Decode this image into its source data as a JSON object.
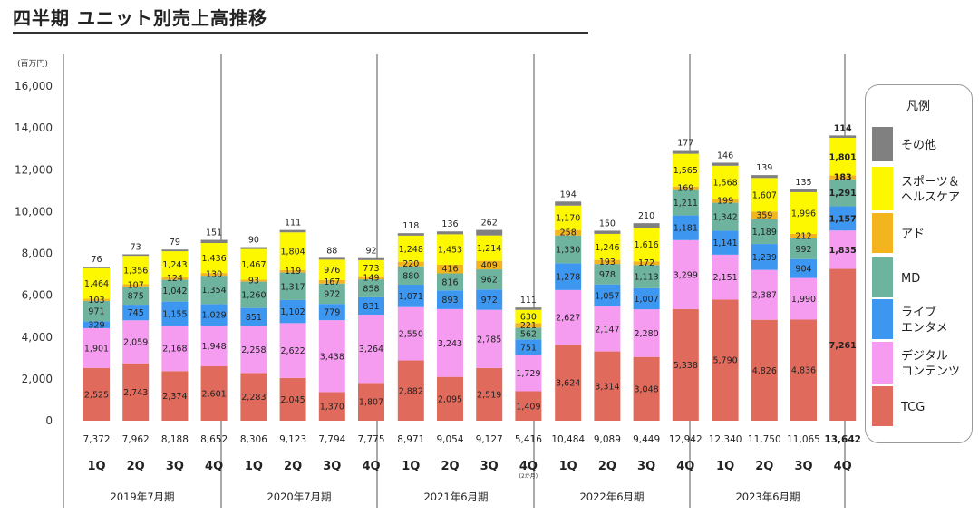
{
  "title": "四半期 ユニット別売上高推移",
  "colors": {
    "TCG": "#e06b5c",
    "digital": "#f59cf0",
    "live": "#3d97f0",
    "MD": "#6eb39e",
    "ad": "#f2b51e",
    "sports": "#fdf700",
    "other": "#808080"
  },
  "chart_data": {
    "type": "bar",
    "stacked": true,
    "unit_label": "(百万円)",
    "ylim": [
      0,
      16000
    ],
    "yticks": [
      "0",
      "2,000",
      "4,000",
      "6,000",
      "8,000",
      "10,000",
      "12,000",
      "14,000",
      "16,000"
    ],
    "ytick_values": [
      0,
      2000,
      4000,
      6000,
      8000,
      10000,
      12000,
      14000,
      16000
    ],
    "grid": false,
    "legend_position": "right",
    "legend_title": "凡例",
    "categories": [
      "1Q",
      "2Q",
      "3Q",
      "4Q",
      "1Q",
      "2Q",
      "3Q",
      "4Q",
      "1Q",
      "2Q",
      "3Q",
      "4Q",
      "1Q",
      "2Q",
      "3Q",
      "4Q",
      "1Q",
      "2Q",
      "3Q",
      "4Q"
    ],
    "groups": [
      "2019年7月期",
      "2020年7月期",
      "2021年6月期",
      "2022年6月期",
      "2023年6月期"
    ],
    "note_text": "(2か月)",
    "note_index": 11,
    "bold_index": 19,
    "totals": [
      7372,
      7962,
      8188,
      8652,
      8306,
      9123,
      7794,
      7775,
      8971,
      9054,
      9127,
      5416,
      10484,
      9089,
      9449,
      12942,
      12340,
      11750,
      11065,
      13642
    ],
    "total_labels": [
      "7,372",
      "7,962",
      "8,188",
      "8,652",
      "8,306",
      "9,123",
      "7,794",
      "7,775",
      "8,971",
      "9,054",
      "9,127",
      "5,416",
      "10,484",
      "9,089",
      "9,449",
      "12,942",
      "12,340",
      "11,750",
      "11,065",
      "13,642"
    ],
    "series": [
      {
        "name": "TCG",
        "key": "TCG",
        "values": [
          2525,
          2743,
          2374,
          2601,
          2283,
          2045,
          1370,
          1807,
          2882,
          2095,
          2519,
          1409,
          3624,
          3314,
          3048,
          5338,
          5790,
          4826,
          4836,
          7261
        ],
        "labels": [
          "2,525",
          "2,743",
          "2,374",
          "2,601",
          "2,283",
          "2,045",
          "1,370",
          "1,807",
          "2,882",
          "2,095",
          "2,519",
          "1,409",
          "3,624",
          "3,314",
          "3,048",
          "5,338",
          "5,790",
          "4,826",
          "4,836",
          "7,261"
        ]
      },
      {
        "name": "デジタルコンテンツ",
        "legend_lines": [
          "デジタル",
          "コンテンツ"
        ],
        "key": "digital",
        "values": [
          1901,
          2059,
          2168,
          1948,
          2258,
          2622,
          3438,
          3264,
          2550,
          3243,
          2785,
          1729,
          2627,
          2147,
          2280,
          3299,
          2151,
          2387,
          1990,
          1835
        ],
        "labels": [
          "1,901",
          "2,059",
          "2,168",
          "1,948",
          "2,258",
          "2,622",
          "3,438",
          "3,264",
          "2,550",
          "3,243",
          "2,785",
          "1,729",
          "2,627",
          "2,147",
          "2,280",
          "3,299",
          "2,151",
          "2,387",
          "1,990",
          "1,835"
        ]
      },
      {
        "name": "ライブエンタメ",
        "legend_lines": [
          "ライブ",
          "エンタメ"
        ],
        "key": "live",
        "values": [
          329,
          745,
          1155,
          1029,
          851,
          1102,
          779,
          831,
          1071,
          893,
          972,
          751,
          1278,
          1057,
          1007,
          1181,
          1141,
          1239,
          904,
          1157
        ],
        "labels": [
          "329",
          "745",
          "1,155",
          "1,029",
          "851",
          "1,102",
          "779",
          "831",
          "1,071",
          "893",
          "972",
          "751",
          "1,278",
          "1,057",
          "1,007",
          "1,181",
          "1,141",
          "1,239",
          "904",
          "1,157"
        ]
      },
      {
        "name": "MD",
        "legend_lines": [
          "MD"
        ],
        "key": "MD",
        "values": [
          971,
          875,
          1042,
          1354,
          1260,
          1317,
          972,
          858,
          880,
          816,
          962,
          562,
          1330,
          978,
          1113,
          1211,
          1342,
          1189,
          992,
          1291
        ],
        "labels": [
          "971",
          "875",
          "1,042",
          "1,354",
          "1,260",
          "1,317",
          "972",
          "858",
          "880",
          "816",
          "962",
          "562",
          "1,330",
          "978",
          "1,113",
          "1,211",
          "1,342",
          "1,189",
          "992",
          "1,291"
        ]
      },
      {
        "name": "アド",
        "legend_lines": [
          "アド"
        ],
        "key": "ad",
        "values": [
          103,
          107,
          124,
          130,
          93,
          119,
          167,
          149,
          220,
          416,
          409,
          221,
          258,
          193,
          172,
          169,
          199,
          359,
          212,
          183
        ],
        "labels": [
          "103",
          "107",
          "124",
          "130",
          "93",
          "119",
          "167",
          "149",
          "220",
          "416",
          "409",
          "221",
          "258",
          "193",
          "172",
          "169",
          "199",
          "359",
          "212",
          "183"
        ]
      },
      {
        "name": "スポーツ＆ヘルスケア",
        "legend_lines": [
          "スポーツ＆",
          "ヘルスケア"
        ],
        "key": "sports",
        "values": [
          1464,
          1356,
          1243,
          1436,
          1467,
          1804,
          976,
          773,
          1248,
          1453,
          1214,
          630,
          1170,
          1246,
          1616,
          1565,
          1568,
          1607,
          1996,
          1801
        ],
        "labels": [
          "1,464",
          "1,356",
          "1,243",
          "1,436",
          "1,467",
          "1,804",
          "976",
          "773",
          "1,248",
          "1,453",
          "1,214",
          "630",
          "1,170",
          "1,246",
          "1,616",
          "1,565",
          "1,568",
          "1,607",
          "1,996",
          "1,801"
        ]
      },
      {
        "name": "その他",
        "legend_lines": [
          "その他"
        ],
        "key": "other",
        "values": [
          76,
          73,
          79,
          151,
          90,
          111,
          88,
          92,
          118,
          136,
          262,
          111,
          194,
          150,
          210,
          177,
          146,
          139,
          135,
          114
        ],
        "labels": [
          "76",
          "73",
          "79",
          "151",
          "90",
          "111",
          "88",
          "92",
          "118",
          "136",
          "262",
          "111",
          "194",
          "150",
          "210",
          "177",
          "146",
          "139",
          "135",
          "114"
        ]
      }
    ]
  }
}
